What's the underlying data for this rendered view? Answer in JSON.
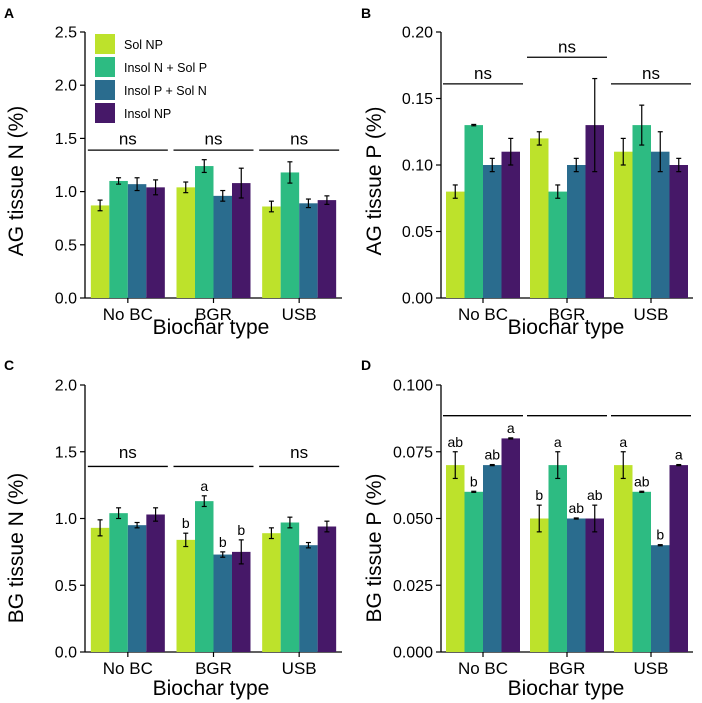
{
  "figure": {
    "legend": [
      {
        "label": "Sol NP",
        "color": "#bde22b"
      },
      {
        "label": "Insol N + Sol P",
        "color": "#2dbb82"
      },
      {
        "label": "Insol P + Sol N",
        "color": "#2a6c8e"
      },
      {
        "label": "Insol NP",
        "color": "#461868"
      }
    ]
  },
  "chart_data": [
    {
      "id": "A",
      "type": "bar",
      "panel_label": "A",
      "ylabel": "AG tissue N (%)",
      "xlabel": "Biochar type",
      "categories": [
        "No BC",
        "BGR",
        "USB"
      ],
      "ylim": [
        0,
        2.5
      ],
      "yticks": [
        0,
        0.5,
        1.0,
        1.5,
        2.0,
        2.5
      ],
      "ytick_labels": [
        "0.0",
        "0.5",
        "1.0",
        "1.5",
        "2.0",
        "2.5"
      ],
      "series": [
        {
          "name": "Sol NP",
          "color": "#bde22b",
          "values": [
            0.87,
            1.04,
            0.86
          ],
          "errors": [
            0.05,
            0.05,
            0.05
          ],
          "letters": [
            "",
            "",
            ""
          ]
        },
        {
          "name": "Insol N + Sol P",
          "color": "#2dbb82",
          "values": [
            1.1,
            1.24,
            1.18
          ],
          "errors": [
            0.03,
            0.06,
            0.1
          ],
          "letters": [
            "",
            "",
            ""
          ]
        },
        {
          "name": "Insol P + Sol N",
          "color": "#2a6c8e",
          "values": [
            1.07,
            0.96,
            0.89
          ],
          "errors": [
            0.06,
            0.05,
            0.04
          ],
          "letters": [
            "",
            "",
            ""
          ]
        },
        {
          "name": "Insol NP",
          "color": "#461868",
          "values": [
            1.04,
            1.08,
            0.92
          ],
          "errors": [
            0.07,
            0.14,
            0.04
          ],
          "letters": [
            "",
            "",
            ""
          ]
        }
      ],
      "significance": [
        {
          "text": "ns",
          "line_y": 1.39,
          "text_y": 1.5
        },
        {
          "text": "ns",
          "line_y": 1.39,
          "text_y": 1.5
        },
        {
          "text": "ns",
          "line_y": 1.39,
          "text_y": 1.5
        }
      ],
      "show_legend": true
    },
    {
      "id": "B",
      "type": "bar",
      "panel_label": "B",
      "ylabel": "AG tissue P (%)",
      "xlabel": "Biochar type",
      "categories": [
        "No BC",
        "BGR",
        "USB"
      ],
      "ylim": [
        0,
        0.2
      ],
      "yticks": [
        0,
        0.05,
        0.1,
        0.15,
        0.2
      ],
      "ytick_labels": [
        "0.00",
        "0.05",
        "0.10",
        "0.15",
        "0.20"
      ],
      "series": [
        {
          "name": "Sol NP",
          "color": "#bde22b",
          "values": [
            0.08,
            0.12,
            0.11
          ],
          "errors": [
            0.005,
            0.005,
            0.01
          ],
          "letters": [
            "",
            "",
            ""
          ]
        },
        {
          "name": "Insol N + Sol P",
          "color": "#2dbb82",
          "values": [
            0.13,
            0.08,
            0.13
          ],
          "errors": [
            0.0005,
            0.005,
            0.015
          ],
          "letters": [
            "",
            "",
            ""
          ]
        },
        {
          "name": "Insol P + Sol N",
          "color": "#2a6c8e",
          "values": [
            0.1,
            0.1,
            0.11
          ],
          "errors": [
            0.005,
            0.005,
            0.015
          ],
          "letters": [
            "",
            "",
            ""
          ]
        },
        {
          "name": "Insol NP",
          "color": "#461868",
          "values": [
            0.11,
            0.13,
            0.1
          ],
          "errors": [
            0.01,
            0.035,
            0.005
          ],
          "letters": [
            "",
            "",
            ""
          ]
        }
      ],
      "significance": [
        {
          "text": "ns",
          "line_y": 0.161,
          "text_y": 0.169
        },
        {
          "text": "ns",
          "line_y": 0.181,
          "text_y": 0.189
        },
        {
          "text": "ns",
          "line_y": 0.161,
          "text_y": 0.169
        }
      ],
      "show_legend": false
    },
    {
      "id": "C",
      "type": "bar",
      "panel_label": "C",
      "ylabel": "BG tissue N (%)",
      "xlabel": "Biochar type",
      "categories": [
        "No BC",
        "BGR",
        "USB"
      ],
      "ylim": [
        0,
        2.0
      ],
      "yticks": [
        0,
        0.5,
        1.0,
        1.5,
        2.0
      ],
      "ytick_labels": [
        "0.0",
        "0.5",
        "1.0",
        "1.5",
        "2.0"
      ],
      "series": [
        {
          "name": "Sol NP",
          "color": "#bde22b",
          "values": [
            0.93,
            0.84,
            0.89
          ],
          "errors": [
            0.06,
            0.05,
            0.04
          ],
          "letters": [
            "",
            "b",
            ""
          ]
        },
        {
          "name": "Insol N + Sol P",
          "color": "#2dbb82",
          "values": [
            1.04,
            1.13,
            0.97
          ],
          "errors": [
            0.04,
            0.04,
            0.04
          ],
          "letters": [
            "",
            "a",
            ""
          ]
        },
        {
          "name": "Insol P + Sol N",
          "color": "#2a6c8e",
          "values": [
            0.95,
            0.73,
            0.8
          ],
          "errors": [
            0.02,
            0.02,
            0.02
          ],
          "letters": [
            "",
            "b",
            ""
          ]
        },
        {
          "name": "Insol NP",
          "color": "#461868",
          "values": [
            1.03,
            0.75,
            0.94
          ],
          "errors": [
            0.05,
            0.09,
            0.04
          ],
          "letters": [
            "",
            "b",
            ""
          ]
        }
      ],
      "significance": [
        {
          "text": "ns",
          "line_y": 1.39,
          "text_y": 1.5
        },
        {
          "text": "",
          "line_y": 1.39,
          "text_y": 1.5
        },
        {
          "text": "ns",
          "line_y": 1.39,
          "text_y": 1.5
        }
      ],
      "show_legend": false
    },
    {
      "id": "D",
      "type": "bar",
      "panel_label": "D",
      "ylabel": "BG tissue P (%)",
      "xlabel": "Biochar type",
      "categories": [
        "No BC",
        "BGR",
        "USB"
      ],
      "ylim": [
        0,
        0.1
      ],
      "yticks": [
        0,
        0.025,
        0.05,
        0.075,
        0.1
      ],
      "ytick_labels": [
        "0.000",
        "0.025",
        "0.050",
        "0.075",
        "0.100"
      ],
      "series": [
        {
          "name": "Sol NP",
          "color": "#bde22b",
          "values": [
            0.07,
            0.05,
            0.07
          ],
          "errors": [
            0.005,
            0.005,
            0.005
          ],
          "letters": [
            "ab",
            "b",
            "a"
          ]
        },
        {
          "name": "Insol N + Sol P",
          "color": "#2dbb82",
          "values": [
            0.06,
            0.07,
            0.06
          ],
          "errors": [
            0.0002,
            0.005,
            0.0002
          ],
          "letters": [
            "b",
            "a",
            "ab"
          ]
        },
        {
          "name": "Insol P + Sol N",
          "color": "#2a6c8e",
          "values": [
            0.07,
            0.05,
            0.04
          ],
          "errors": [
            0.0002,
            0.0002,
            0.0002
          ],
          "letters": [
            "ab",
            "ab",
            "b"
          ]
        },
        {
          "name": "Insol NP",
          "color": "#461868",
          "values": [
            0.08,
            0.05,
            0.07
          ],
          "errors": [
            0.0002,
            0.005,
            0.0002
          ],
          "letters": [
            "a",
            "ab",
            "a"
          ]
        }
      ],
      "significance": [
        {
          "text": "",
          "line_y": 0.0885,
          "text_y": 0.093
        },
        {
          "text": "",
          "line_y": 0.0885,
          "text_y": 0.093
        },
        {
          "text": "",
          "line_y": 0.0885,
          "text_y": 0.093
        }
      ],
      "show_legend": false
    }
  ]
}
